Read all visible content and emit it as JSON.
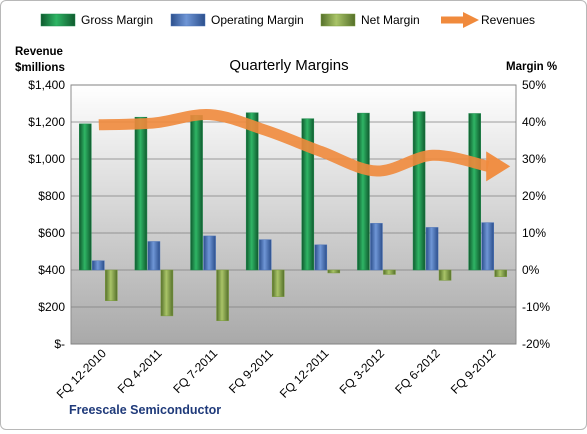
{
  "chart_data": {
    "type": "bar",
    "title": "Quarterly Margins",
    "company_label": "Freescale Semiconductor",
    "left_axis": {
      "label_line1": "Revenue",
      "label_line2": "$millions",
      "min": 0,
      "max": 1400,
      "step": 200,
      "tick_labels": [
        "$-",
        "$200",
        "$400",
        "$600",
        "$800",
        "$1,000",
        "$1,200",
        "$1,400"
      ]
    },
    "right_axis": {
      "label": "Margin %",
      "min": -20,
      "max": 50,
      "step": 10,
      "tick_labels": [
        "-20%",
        "-10%",
        "0%",
        "10%",
        "20%",
        "30%",
        "40%",
        "50%"
      ]
    },
    "categories": [
      "FQ 12-2010",
      "FQ 4-2011",
      "FQ 7-2011",
      "FQ 9-2011",
      "FQ 12-2011",
      "FQ 3-2012",
      "FQ 6-2012",
      "FQ 9-2012"
    ],
    "series": [
      {
        "name": "Gross Margin",
        "axis": "right",
        "kind": "bar",
        "color": "#1e8a4c",
        "values": [
          39.5,
          41.3,
          41.8,
          42.5,
          40.9,
          42.4,
          42.8,
          42.3
        ]
      },
      {
        "name": "Operating Margin",
        "axis": "right",
        "kind": "bar",
        "color": "#4a72b8",
        "values": [
          2.5,
          7.7,
          9.2,
          8.2,
          6.8,
          12.6,
          11.5,
          12.8
        ]
      },
      {
        "name": "Net Margin",
        "axis": "right",
        "kind": "bar",
        "color": "#7a9a3a",
        "values": [
          -8.3,
          -12.4,
          -13.7,
          -7.2,
          -0.8,
          -1.2,
          -2.8,
          -1.8
        ]
      },
      {
        "name": "Revenues",
        "axis": "left",
        "kind": "line",
        "color": "#f08a3c",
        "values": [
          1185,
          1195,
          1240,
          1155,
          1040,
          935,
          1020,
          960
        ]
      }
    ],
    "legend_position": "top",
    "grid": true
  }
}
